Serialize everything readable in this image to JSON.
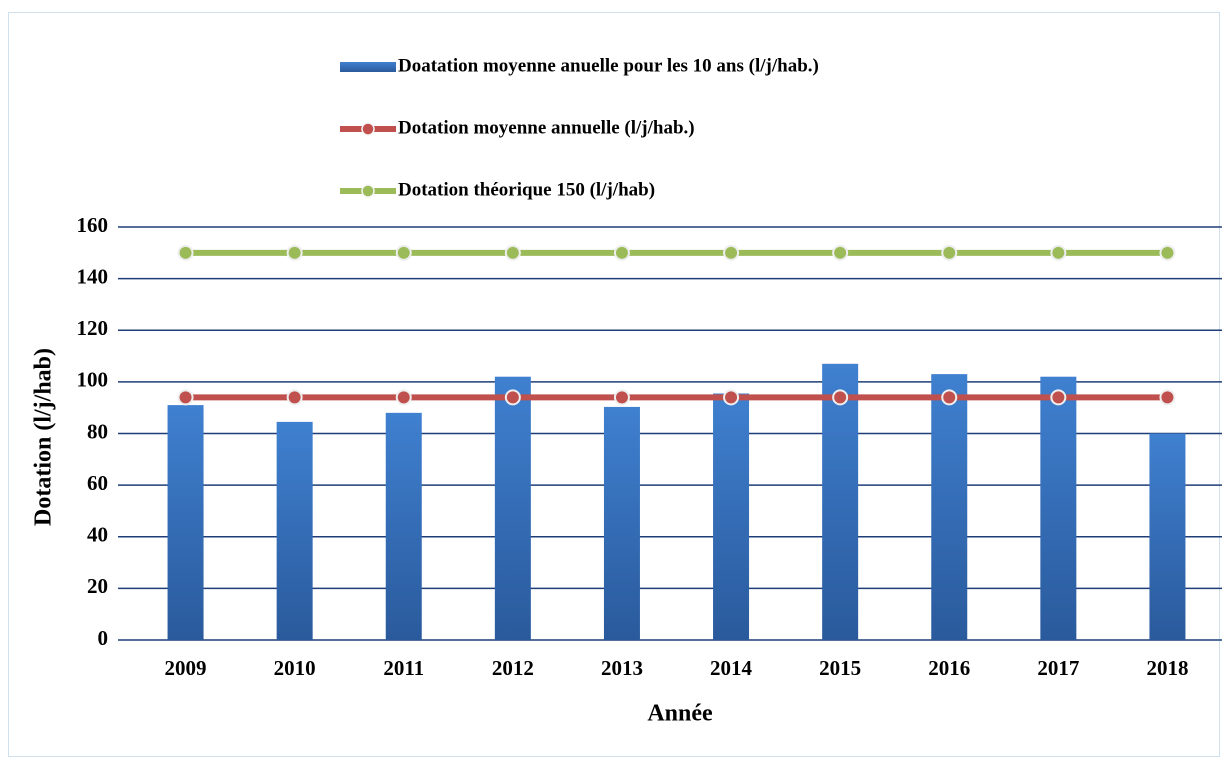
{
  "chart_data": {
    "type": "bar",
    "categories": [
      "2009",
      "2010",
      "2011",
      "2012",
      "2013",
      "2014",
      "2015",
      "2016",
      "2017",
      "2018"
    ],
    "series": [
      {
        "name": "Doatation moyenne anuelle pour les 10 ans (l/j/hab.)",
        "type": "bar",
        "color": "#3a75c4",
        "values": [
          91,
          84.5,
          88,
          102,
          90.3,
          95.5,
          107,
          103,
          102,
          80
        ]
      },
      {
        "name": "Dotation moyenne annuelle (l/j/hab.)",
        "type": "line",
        "color": "#c0504d",
        "values": [
          94,
          94,
          94,
          94,
          94,
          94,
          94,
          94,
          94,
          94
        ]
      },
      {
        "name": "Dotation théorique 150 (l/j/hab)",
        "type": "line",
        "color": "#9bbb59",
        "values": [
          150,
          150,
          150,
          150,
          150,
          150,
          150,
          150,
          150,
          150
        ]
      }
    ],
    "x_label": "Année",
    "y_label": "Dotation (l/j/hab)",
    "ylim": [
      0,
      160
    ],
    "yticks": [
      0,
      20,
      40,
      60,
      80,
      100,
      120,
      140,
      160
    ],
    "grid": true,
    "legend": "top"
  }
}
